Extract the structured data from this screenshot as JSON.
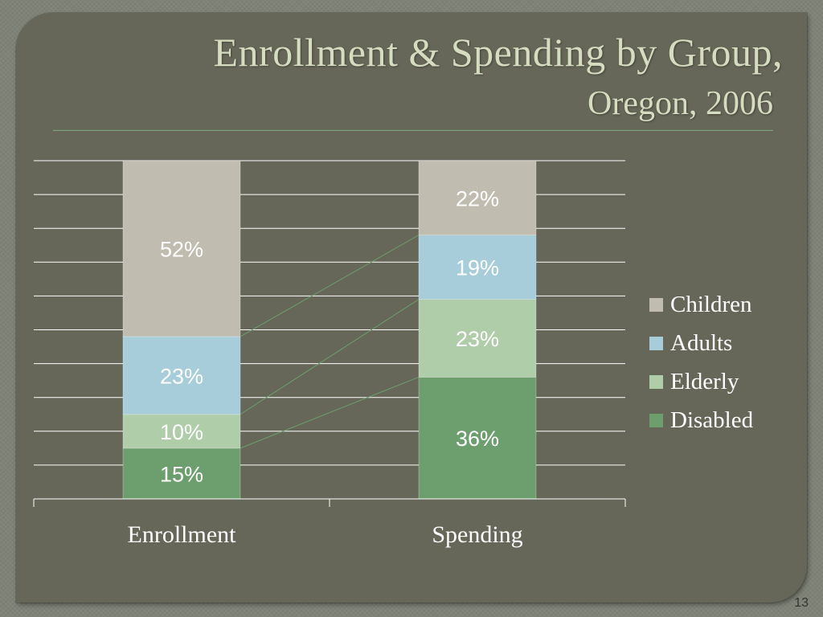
{
  "slide": {
    "title_line1": "Enrollment & Spending by Group,",
    "title_line2": "Oregon, 2006",
    "page_number": "13"
  },
  "chart_data": {
    "type": "bar",
    "stacked": true,
    "percent_stacked": true,
    "categories": [
      "Enrollment",
      "Spending"
    ],
    "series": [
      {
        "name": "Disabled",
        "values": [
          15,
          36
        ],
        "labels": [
          "15%",
          "36%"
        ],
        "color": "#6d9e6e"
      },
      {
        "name": "Elderly",
        "values": [
          10,
          23
        ],
        "labels": [
          "10%",
          "23%"
        ],
        "color": "#b0cdaa"
      },
      {
        "name": "Adults",
        "values": [
          23,
          19
        ],
        "labels": [
          "23%",
          "19%"
        ],
        "color": "#a6cdd9"
      },
      {
        "name": "Children",
        "values": [
          52,
          22
        ],
        "labels": [
          "52%",
          "22%"
        ],
        "color": "#c0bdb0"
      }
    ],
    "legend_order": [
      "Children",
      "Adults",
      "Elderly",
      "Disabled"
    ],
    "ylim": [
      0,
      100
    ],
    "grid": true,
    "series_lines": true,
    "legend_position": "right",
    "gridline_color": "#ffffff",
    "label_color": "#ffffff"
  }
}
